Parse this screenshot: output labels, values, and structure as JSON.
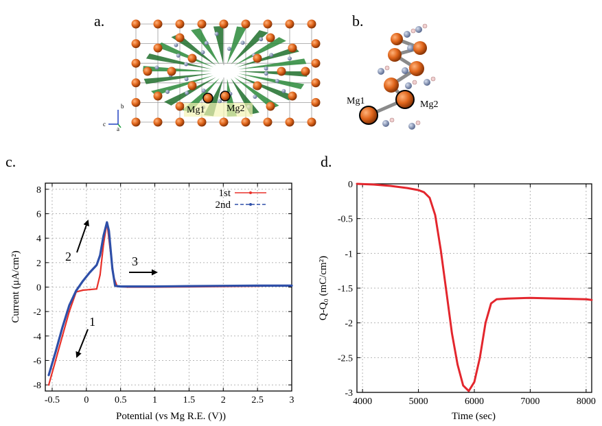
{
  "panels": {
    "a": {
      "label": "a.",
      "atom_labels": [
        "Mg1",
        "Mg2"
      ],
      "axes_labels": [
        "b",
        "c",
        "a"
      ]
    },
    "b": {
      "label": "b.",
      "atom_labels": [
        "Mg1",
        "Mg2"
      ]
    },
    "c": {
      "label": "c."
    },
    "d": {
      "label": "d."
    }
  },
  "colors": {
    "first_cycle": "#e8312a",
    "second_cycle": "#2e4fa8",
    "q_curve": "#e3262d",
    "mg_atom": "#e0661c",
    "green_polyhedra": "#2a8a3a"
  },
  "chart_data": [
    {
      "id": "c",
      "type": "line",
      "title": "",
      "xlabel": "Potential (vs  Mg R.E. (V))",
      "ylabel": "Current (μA/cm²)",
      "xlim": [
        -0.6,
        3.0
      ],
      "ylim": [
        -8.5,
        8.5
      ],
      "xticks": [
        -0.5,
        0,
        0.5,
        1,
        1.5,
        2,
        2.5,
        3
      ],
      "xtick_labels": [
        "-0.5",
        "0",
        "0.5",
        "1",
        "1.5",
        "2",
        "2.5",
        "3"
      ],
      "yticks": [
        -8,
        -6,
        -4,
        -2,
        0,
        2,
        4,
        6,
        8
      ],
      "ytick_labels": [
        "-8",
        "-6",
        "-4",
        "-2",
        "0",
        "2",
        "4",
        "6",
        "8"
      ],
      "grid": true,
      "legend_position": "top-right",
      "series": [
        {
          "name": "1st",
          "x": [
            -0.55,
            -0.45,
            -0.35,
            -0.25,
            -0.15,
            -0.05,
            0.05,
            0.15,
            0.2,
            0.25,
            0.3,
            0.35,
            0.4,
            0.45,
            0.6,
            1.0,
            1.5,
            2.0,
            2.5,
            3.0
          ],
          "y": [
            -8.0,
            -6.0,
            -4.0,
            -2.0,
            -0.4,
            -0.25,
            -0.2,
            -0.15,
            1.0,
            3.5,
            5.3,
            3.0,
            0.8,
            0.05,
            0.0,
            0.0,
            0.02,
            0.05,
            0.08,
            0.1
          ]
        },
        {
          "name": "2nd",
          "x": [
            -0.55,
            -0.45,
            -0.35,
            -0.25,
            -0.15,
            -0.05,
            0.05,
            0.15,
            0.2,
            0.25,
            0.3,
            0.33,
            0.38,
            0.42,
            0.5,
            1.0,
            1.5,
            2.0,
            2.5,
            3.0
          ],
          "y": [
            -7.2,
            -5.3,
            -3.3,
            -1.5,
            -0.3,
            0.5,
            1.2,
            1.8,
            2.6,
            4.2,
            5.3,
            4.6,
            1.5,
            0.1,
            0.05,
            0.05,
            0.08,
            0.1,
            0.12,
            0.12
          ]
        }
      ],
      "annotations": [
        {
          "text": "1"
        },
        {
          "text": "2"
        },
        {
          "text": "3"
        }
      ]
    },
    {
      "id": "d",
      "type": "line",
      "title": "",
      "xlabel": "Time (sec)",
      "ylabel": "Q-Q₀  (mC/cm²)",
      "xlim": [
        3900,
        8100
      ],
      "ylim": [
        -3.0,
        0.0
      ],
      "xticks": [
        4000,
        5000,
        6000,
        7000,
        8000
      ],
      "xtick_labels": [
        "4000",
        "5000",
        "6000",
        "7000",
        "8000"
      ],
      "yticks": [
        0,
        -0.5,
        -1,
        -1.5,
        -2,
        -2.5,
        -3
      ],
      "ytick_labels": [
        "0",
        "-0.5",
        "-1",
        "-1.5",
        "-2",
        "-2.5",
        "-3"
      ],
      "grid": true,
      "series": [
        {
          "name": "",
          "x": [
            3900,
            4200,
            4500,
            4800,
            5000,
            5100,
            5200,
            5300,
            5400,
            5500,
            5600,
            5700,
            5800,
            5900,
            6000,
            6100,
            6200,
            6300,
            6400,
            6600,
            7000,
            7500,
            8000,
            8100
          ],
          "y": [
            0.0,
            -0.01,
            -0.03,
            -0.06,
            -0.09,
            -0.12,
            -0.2,
            -0.45,
            -0.95,
            -1.55,
            -2.15,
            -2.6,
            -2.9,
            -2.98,
            -2.85,
            -2.5,
            -2.0,
            -1.72,
            -1.66,
            -1.65,
            -1.64,
            -1.65,
            -1.66,
            -1.67
          ]
        }
      ]
    }
  ]
}
